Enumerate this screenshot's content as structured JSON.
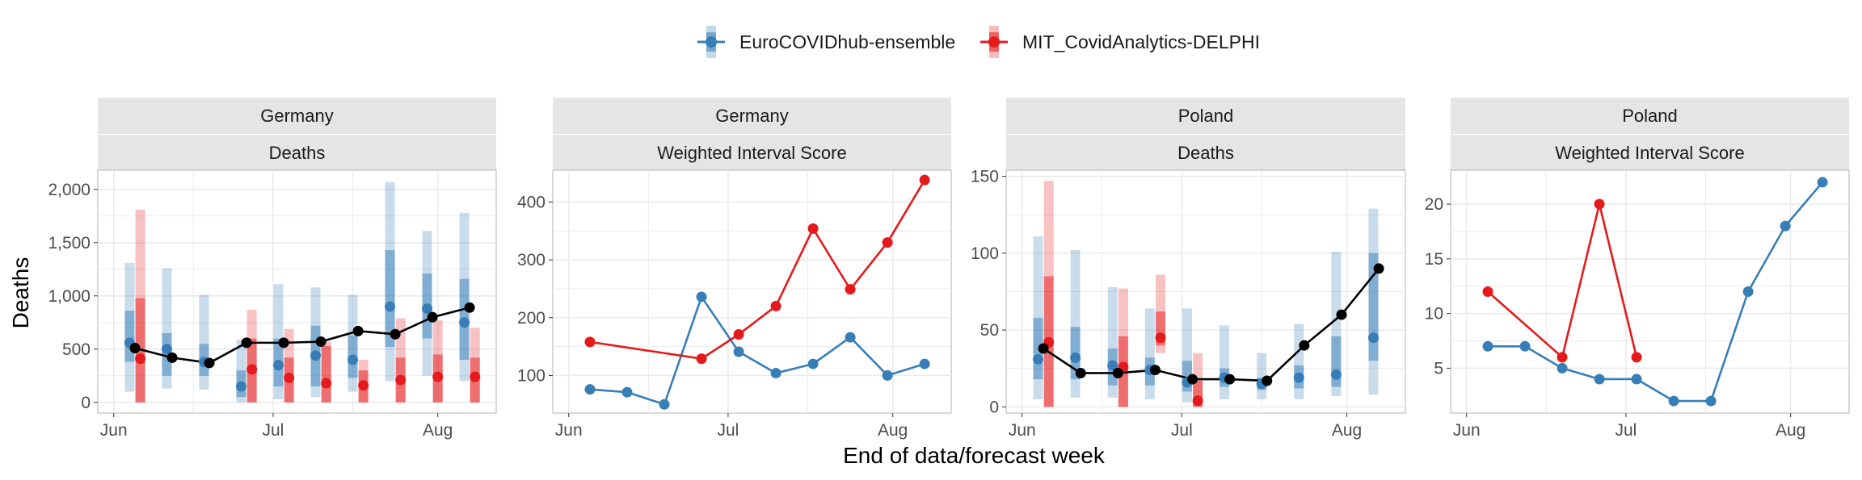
{
  "legend": {
    "items": [
      {
        "name": "EuroCOVIDhub-ensemble",
        "color": "#377eb8"
      },
      {
        "name": "MIT_CovidAnalytics-DELPHI",
        "color": "#e41a1c"
      }
    ]
  },
  "axes": {
    "xlabel": "End of data/forecast week",
    "ylabel": "Deaths"
  },
  "x_ticks": [
    "Jun",
    "Jul",
    "Aug"
  ],
  "colors": {
    "ensemble": "#377eb8",
    "delphi": "#e41a1c",
    "observed": "#000000",
    "strip_bg": "#e5e5e5",
    "grid": "#ebebeb"
  },
  "chart_data": [
    {
      "type": "line",
      "panel": "germany-deaths",
      "location": "Germany",
      "metric": "Deaths",
      "xlim": [
        "2021-05-29",
        "2021-08-12"
      ],
      "ylim": [
        -100,
        2180
      ],
      "y_ticks": [
        0,
        500,
        1000,
        1500,
        2000
      ],
      "y_tick_labels": [
        "0",
        "500",
        "1,000",
        "1,500",
        "2,000"
      ],
      "observed": {
        "x": [
          "2021-06-05",
          "2021-06-12",
          "2021-06-19",
          "2021-06-26",
          "2021-07-03",
          "2021-07-10",
          "2021-07-17",
          "2021-07-24",
          "2021-07-31",
          "2021-08-07"
        ],
        "y": [
          510,
          420,
          370,
          560,
          560,
          570,
          670,
          640,
          800,
          890
        ]
      },
      "forecasts": [
        {
          "name": "EuroCOVIDhub-ensemble",
          "x": [
            "2021-06-04",
            "2021-06-11",
            "2021-06-18",
            "2021-06-25",
            "2021-07-02",
            "2021-07-09",
            "2021-07-16",
            "2021-07-23",
            "2021-07-30",
            "2021-08-06"
          ],
          "median": [
            560,
            500,
            380,
            150,
            350,
            440,
            400,
            900,
            880,
            750
          ],
          "lower50": [
            380,
            250,
            250,
            50,
            150,
            150,
            230,
            520,
            600,
            400
          ],
          "upper50": [
            860,
            650,
            550,
            300,
            600,
            720,
            630,
            1430,
            1210,
            1160
          ],
          "lower90": [
            100,
            130,
            120,
            0,
            30,
            50,
            100,
            200,
            250,
            200
          ],
          "upper90": [
            1310,
            1260,
            1010,
            590,
            1110,
            1080,
            1010,
            2070,
            1610,
            1780
          ]
        },
        {
          "name": "MIT_CovidAnalytics-DELPHI",
          "x": [
            "2021-06-06",
            "2021-06-27",
            "2021-07-04",
            "2021-07-11",
            "2021-07-18",
            "2021-07-25",
            "2021-08-01",
            "2021-08-08"
          ],
          "median": [
            410,
            310,
            230,
            180,
            160,
            210,
            240,
            240
          ],
          "lower50": [
            0,
            0,
            0,
            0,
            0,
            0,
            0,
            0
          ],
          "upper50": [
            980,
            600,
            420,
            530,
            300,
            420,
            450,
            420
          ],
          "lower90": [
            0,
            0,
            0,
            0,
            0,
            0,
            0,
            0
          ],
          "upper90": [
            1810,
            870,
            690,
            570,
            400,
            790,
            770,
            700
          ]
        }
      ]
    },
    {
      "type": "line",
      "panel": "germany-wis",
      "location": "Germany",
      "metric": "Weighted Interval Score",
      "xlim": [
        "2021-05-29",
        "2021-08-12"
      ],
      "ylim": [
        35,
        455
      ],
      "y_ticks": [
        100,
        200,
        300,
        400
      ],
      "y_tick_labels": [
        "100",
        "200",
        "300",
        "400"
      ],
      "series": [
        {
          "name": "EuroCOVIDhub-ensemble",
          "x": [
            "2021-06-05",
            "2021-06-12",
            "2021-06-19",
            "2021-06-26",
            "2021-07-03",
            "2021-07-10",
            "2021-07-17",
            "2021-07-24",
            "2021-07-31",
            "2021-08-07"
          ],
          "y": [
            76,
            71,
            50,
            236,
            141,
            104,
            120,
            166,
            100,
            120
          ]
        },
        {
          "name": "MIT_CovidAnalytics-DELPHI",
          "x": [
            "2021-06-05",
            "2021-06-26",
            "2021-07-03",
            "2021-07-10",
            "2021-07-17",
            "2021-07-24",
            "2021-07-31",
            "2021-08-07"
          ],
          "y": [
            158,
            129,
            171,
            220,
            354,
            249,
            330,
            438
          ]
        }
      ]
    },
    {
      "type": "line",
      "panel": "poland-deaths",
      "location": "Poland",
      "metric": "Deaths",
      "xlim": [
        "2021-05-29",
        "2021-08-12"
      ],
      "ylim": [
        -4,
        154
      ],
      "y_ticks": [
        0,
        50,
        100,
        150
      ],
      "y_tick_labels": [
        "0",
        "50",
        "100",
        "150"
      ],
      "observed": {
        "x": [
          "2021-06-05",
          "2021-06-12",
          "2021-06-19",
          "2021-06-26",
          "2021-07-03",
          "2021-07-10",
          "2021-07-17",
          "2021-07-24",
          "2021-07-31",
          "2021-08-07"
        ],
        "y": [
          38,
          22,
          22,
          24,
          18,
          18,
          17,
          40,
          60,
          90
        ]
      },
      "forecasts": [
        {
          "name": "EuroCOVIDhub-ensemble",
          "x": [
            "2021-06-04",
            "2021-06-11",
            "2021-06-18",
            "2021-06-25",
            "2021-07-02",
            "2021-07-09",
            "2021-07-16",
            "2021-07-23",
            "2021-07-30",
            "2021-08-06"
          ],
          "median": [
            31,
            32,
            27,
            24,
            16,
            19,
            15,
            19,
            21,
            45
          ],
          "lower50": [
            18,
            18,
            14,
            14,
            10,
            13,
            11,
            12,
            13,
            30
          ],
          "upper50": [
            58,
            52,
            38,
            32,
            30,
            25,
            19,
            27,
            46,
            100
          ],
          "lower90": [
            5,
            6,
            6,
            5,
            3,
            5,
            5,
            5,
            7,
            8
          ],
          "upper90": [
            111,
            102,
            78,
            64,
            64,
            53,
            35,
            54,
            101,
            129
          ]
        },
        {
          "name": "MIT_CovidAnalytics-DELPHI",
          "x": [
            "2021-06-06",
            "2021-06-20",
            "2021-06-27",
            "2021-07-04"
          ],
          "median": [
            42,
            26,
            45,
            4
          ],
          "lower50": [
            0,
            0,
            40,
            0
          ],
          "upper50": [
            85,
            46,
            62,
            17
          ],
          "lower90": [
            0,
            0,
            35,
            0
          ],
          "upper90": [
            147,
            77,
            86,
            35
          ]
        }
      ]
    },
    {
      "type": "line",
      "panel": "poland-wis",
      "location": "Poland",
      "metric": "Weighted Interval Score",
      "xlim": [
        "2021-05-29",
        "2021-08-12"
      ],
      "ylim": [
        0.9,
        23.1
      ],
      "y_ticks": [
        5,
        10,
        15,
        20
      ],
      "y_tick_labels": [
        "5",
        "10",
        "15",
        "20"
      ],
      "series": [
        {
          "name": "EuroCOVIDhub-ensemble",
          "x": [
            "2021-06-05",
            "2021-06-12",
            "2021-06-19",
            "2021-06-26",
            "2021-07-03",
            "2021-07-10",
            "2021-07-17",
            "2021-07-24",
            "2021-07-31",
            "2021-08-07"
          ],
          "y": [
            7,
            7,
            5,
            4,
            4,
            2,
            2,
            12,
            18,
            22
          ]
        },
        {
          "name": "MIT_CovidAnalytics-DELPHI",
          "x": [
            "2021-06-05",
            "2021-06-19",
            "2021-06-26",
            "2021-07-03"
          ],
          "y": [
            12,
            6,
            20,
            6
          ]
        }
      ]
    }
  ]
}
